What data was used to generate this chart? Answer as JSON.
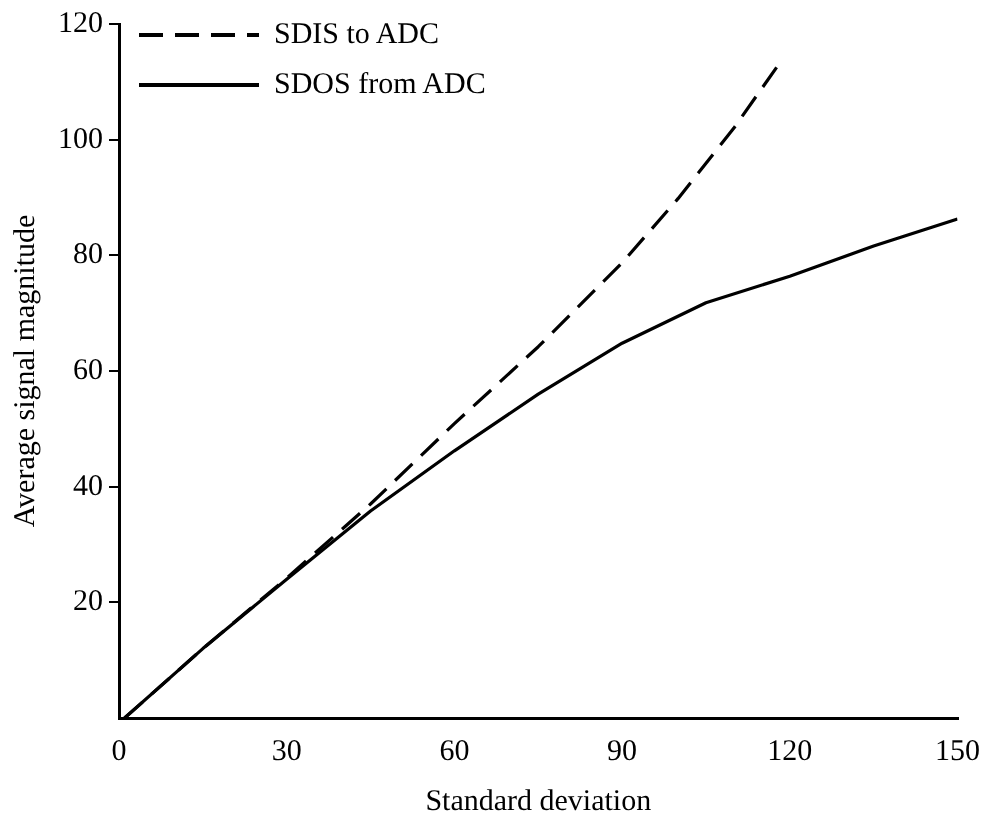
{
  "chart_data": {
    "type": "line",
    "xlabel": "Standard deviation",
    "ylabel": "Average signal magnitude",
    "xlim": [
      0,
      150
    ],
    "ylim": [
      0,
      120
    ],
    "xticks": [
      0,
      30,
      60,
      90,
      120,
      150
    ],
    "yticks": [
      20,
      40,
      60,
      80,
      100,
      120
    ],
    "grid": false,
    "legend": "top left",
    "marker": "none",
    "series": [
      {
        "name": "SDIS to ADC",
        "color": "#000000",
        "line_style": "dashed",
        "x": [
          1,
          15,
          30,
          45,
          60,
          75,
          90,
          100,
          110,
          118
        ],
        "values": [
          0,
          12,
          24.2,
          37,
          50.9,
          64.2,
          78.7,
          89.8,
          102,
          113
        ]
      },
      {
        "name": "SDOS from ADC",
        "color": "#000000",
        "line_style": "solid",
        "x": [
          1,
          15,
          30,
          45,
          60,
          75,
          90,
          105,
          120,
          135,
          150
        ],
        "values": [
          0,
          12,
          24,
          35.8,
          46.2,
          56,
          64.8,
          71.8,
          76.4,
          81.6,
          86.3
        ]
      }
    ]
  }
}
